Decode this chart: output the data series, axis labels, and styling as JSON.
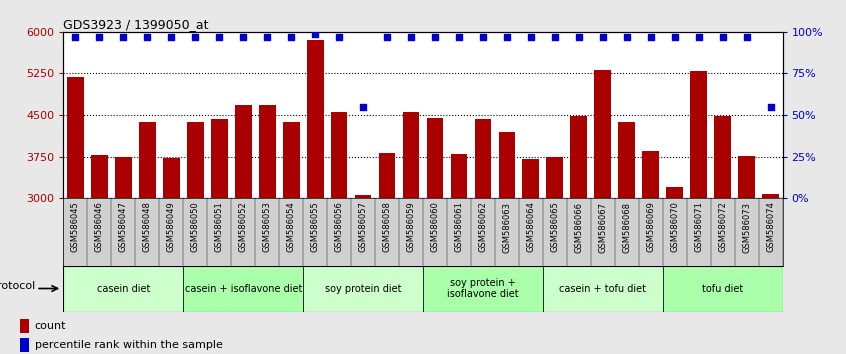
{
  "title": "GDS3923 / 1399050_at",
  "samples": [
    "GSM586045",
    "GSM586046",
    "GSM586047",
    "GSM586048",
    "GSM586049",
    "GSM586050",
    "GSM586051",
    "GSM586052",
    "GSM586053",
    "GSM586054",
    "GSM586055",
    "GSM586056",
    "GSM586057",
    "GSM586058",
    "GSM586059",
    "GSM586060",
    "GSM586061",
    "GSM586062",
    "GSM586063",
    "GSM586064",
    "GSM586065",
    "GSM586066",
    "GSM586067",
    "GSM586068",
    "GSM586069",
    "GSM586070",
    "GSM586071",
    "GSM586072",
    "GSM586073",
    "GSM586074"
  ],
  "counts": [
    5180,
    3780,
    3740,
    4380,
    3720,
    4380,
    4430,
    4690,
    4680,
    4380,
    5860,
    4560,
    3050,
    3820,
    4560,
    4450,
    3800,
    4430,
    4190,
    3700,
    3740,
    4480,
    5320,
    4370,
    3860,
    3210,
    5300,
    4490,
    3760,
    3080
  ],
  "percentile_ranks": [
    97,
    97,
    97,
    97,
    97,
    97,
    97,
    97,
    97,
    97,
    99,
    97,
    55,
    97,
    97,
    97,
    97,
    97,
    97,
    97,
    97,
    97,
    97,
    97,
    97,
    97,
    97,
    97,
    97,
    55
  ],
  "bar_color": "#aa0000",
  "dot_color": "#0000cc",
  "ylim_left": [
    3000,
    6000
  ],
  "ylim_right": [
    0,
    100
  ],
  "yticks_left": [
    3000,
    3750,
    4500,
    5250,
    6000
  ],
  "yticks_right": [
    0,
    25,
    50,
    75,
    100
  ],
  "protocol_groups": [
    {
      "label": "casein diet",
      "start": 0,
      "end": 4,
      "color": "#ccffcc"
    },
    {
      "label": "casein + isoflavone diet",
      "start": 5,
      "end": 9,
      "color": "#aaffaa"
    },
    {
      "label": "soy protein diet",
      "start": 10,
      "end": 14,
      "color": "#ccffcc"
    },
    {
      "label": "soy protein +\nisoflavone diet",
      "start": 15,
      "end": 19,
      "color": "#aaffaa"
    },
    {
      "label": "casein + tofu diet",
      "start": 20,
      "end": 24,
      "color": "#ccffcc"
    },
    {
      "label": "tofu diet",
      "start": 25,
      "end": 29,
      "color": "#aaffaa"
    }
  ],
  "bg_color": "#e8e8e8",
  "plot_bg": "#ffffff",
  "xtick_bg": "#d0d0d0",
  "legend_count_color": "#aa0000",
  "legend_pct_color": "#0000cc"
}
